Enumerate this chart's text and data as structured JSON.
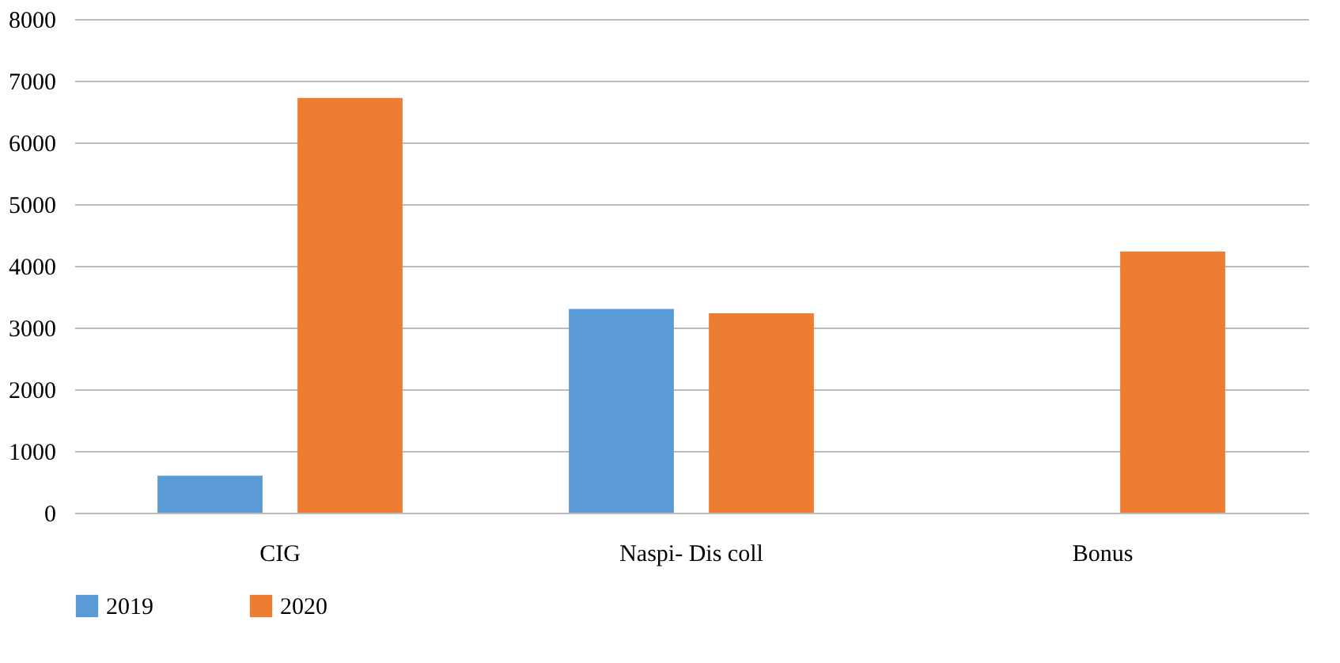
{
  "chart_data": {
    "type": "bar",
    "categories": [
      "CIG",
      "Naspi- Dis coll",
      "Bonus"
    ],
    "series": [
      {
        "name": "2019",
        "color": "#5b9bd5",
        "values": [
          600,
          3300,
          null
        ]
      },
      {
        "name": "2020",
        "color": "#ed7d31",
        "values": [
          6720,
          3230,
          4230
        ]
      }
    ],
    "ylim": [
      0,
      8000
    ],
    "yticks": [
      0,
      1000,
      2000,
      3000,
      4000,
      5000,
      6000,
      7000,
      8000
    ],
    "grid": "y",
    "legend": "bottom"
  }
}
